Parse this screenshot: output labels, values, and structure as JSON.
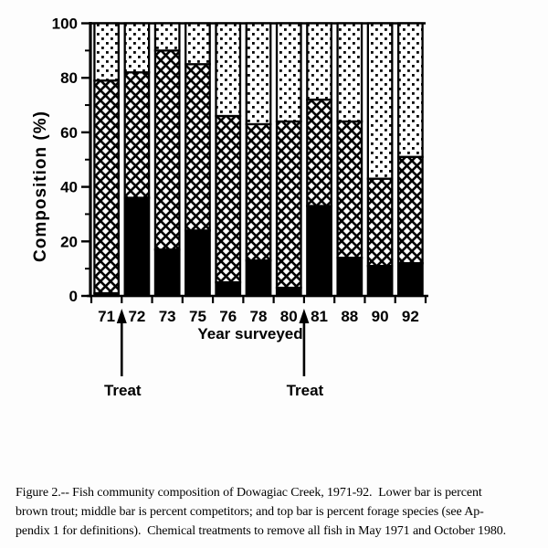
{
  "chart_data": {
    "type": "bar",
    "stacked": true,
    "title": "",
    "xlabel": "Year surveyed",
    "ylabel": "Composition (%)",
    "ylim": [
      0,
      100
    ],
    "y_ticks": [
      0,
      20,
      40,
      60,
      80,
      100
    ],
    "y_minor_ticks": [
      10,
      30,
      50,
      70,
      90
    ],
    "grid": false,
    "legend": "none",
    "categories": [
      "71",
      "72",
      "73",
      "75",
      "76",
      "78",
      "80",
      "81",
      "88",
      "90",
      "92"
    ],
    "series": [
      {
        "name": "Brown trout (lower bar)",
        "key": "brown-trout",
        "fill": "solid-black",
        "values": [
          1,
          36,
          17,
          24,
          5,
          13,
          3,
          33,
          14,
          11,
          12
        ]
      },
      {
        "name": "Competitors (middle bar)",
        "key": "competitors",
        "fill": "crosshatch",
        "values": [
          78,
          46,
          73,
          61,
          61,
          50,
          61,
          39,
          50,
          32,
          39
        ]
      },
      {
        "name": "Forage species (top bar)",
        "key": "forage-species",
        "fill": "stipple",
        "values": [
          21,
          18,
          10,
          15,
          34,
          37,
          36,
          28,
          36,
          57,
          49
        ]
      }
    ],
    "annotations": [
      {
        "text": "Treat",
        "after_category": "71"
      },
      {
        "text": "Treat",
        "after_category": "80"
      }
    ]
  },
  "caption": {
    "lines": [
      "Figure 2.-- Fish community composition of Dowagiac Creek, 1971-92.  Lower bar is percent",
      "brown trout; middle bar is percent competitors; and top bar is percent forage species (see Ap-",
      "pendix 1 for definitions).  Chemical treatments to remove all fish in May 1971 and October 1980."
    ]
  }
}
